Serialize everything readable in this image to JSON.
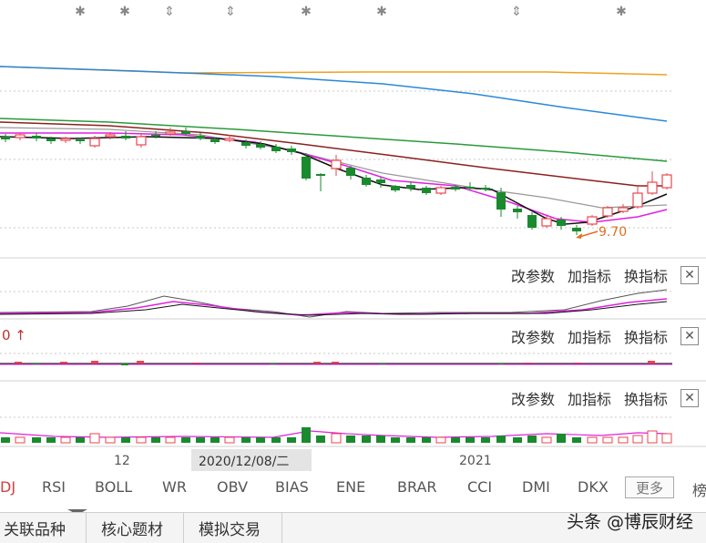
{
  "chart_data": {
    "type": "candlestick",
    "price_label": "9.70",
    "x_labels": [
      "12",
      "2021"
    ],
    "crosshair_date": "2020/12/08/二"
  },
  "panel_controls": {
    "modify_params": "改参数",
    "add_indicator": "加指标",
    "switch_indicator": "换指标",
    "close": "✕"
  },
  "cut_off_text": {
    "arrow_label": "0 ↑",
    "left_tab": "DJ",
    "right_tab": "榜"
  },
  "indicator_tabs": [
    "RSI",
    "BOLL",
    "WR",
    "OBV",
    "BIAS",
    "ENE",
    "BRAR",
    "CCI",
    "DMI",
    "DKX"
  ],
  "more_button": "更多",
  "bottom_tabs": [
    "关联品种",
    "核心题材",
    "模拟交易"
  ],
  "watermark": "头条 @博辰财经",
  "colors": {
    "up": "#e8464f",
    "down": "#1a8a2e",
    "ma_orange": "#f0a020",
    "ma_blue": "#2a88d8",
    "ma_green": "#2a9a3a",
    "ma_brown": "#8b2020",
    "ma_magenta": "#e020e0",
    "ma_gray": "#999999",
    "ma_black": "#111111"
  }
}
